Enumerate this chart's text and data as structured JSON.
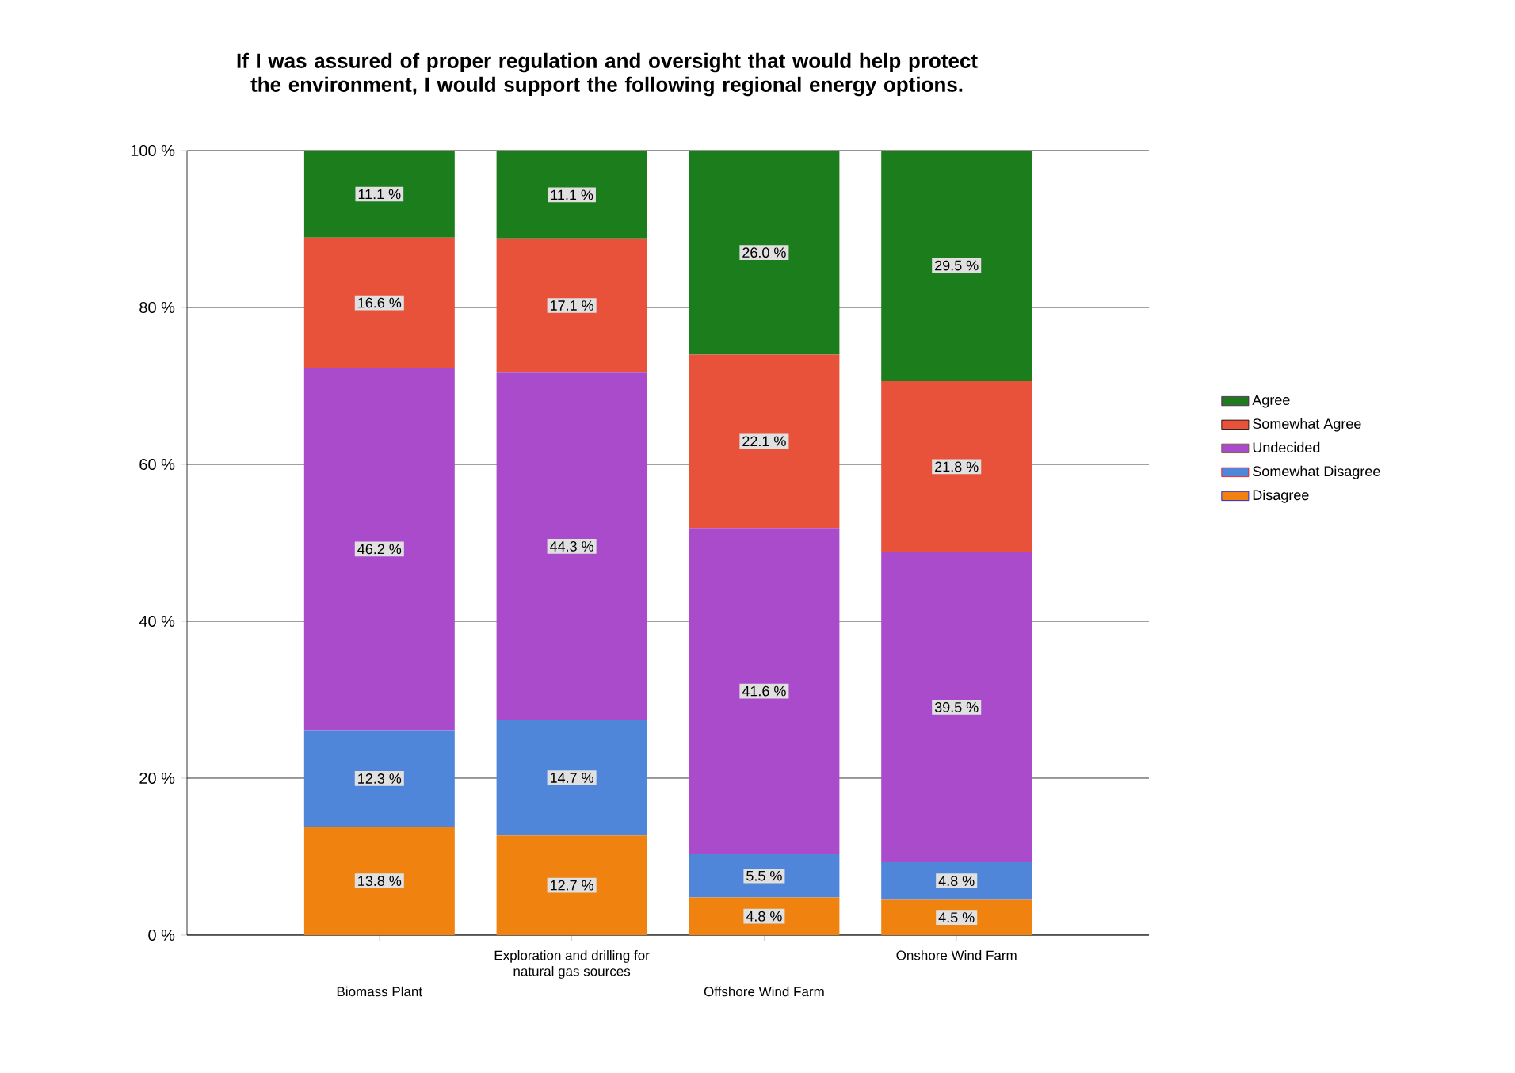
{
  "chart_data": {
    "type": "bar",
    "stacked": true,
    "title": "If I was assured of proper regulation and oversight that would help protect the environment, I would support the following regional energy options.",
    "categories": [
      "Biomass Plant",
      "Exploration and drilling for natural gas sources",
      "Offshore Wind Farm",
      "Onshore Wind Farm"
    ],
    "series": [
      {
        "name": "Disagree",
        "color": "#f0820f",
        "values": [
          13.8,
          12.7,
          4.8,
          4.5
        ],
        "value_labels": [
          "13.8 %",
          "12.7 %",
          "4.8 %",
          "4.5 %"
        ]
      },
      {
        "name": "Somewhat Disagree",
        "color": "#4f86d9",
        "values": [
          12.3,
          14.7,
          5.5,
          4.8
        ],
        "value_labels": [
          "12.3 %",
          "14.7 %",
          "5.5 %",
          "4.8 %"
        ]
      },
      {
        "name": "Undecided",
        "color": "#a94bcb",
        "values": [
          46.2,
          44.3,
          41.6,
          39.5
        ],
        "value_labels": [
          "46.2 %",
          "44.3 %",
          "41.6 %",
          "39.5 %"
        ]
      },
      {
        "name": "Somewhat Agree",
        "color": "#e9523a",
        "values": [
          16.6,
          17.1,
          22.1,
          21.8
        ],
        "value_labels": [
          "16.6 %",
          "17.1 %",
          "22.1 %",
          "21.8 %"
        ]
      },
      {
        "name": "Agree",
        "color": "#1b7d1b",
        "values": [
          11.1,
          11.1,
          26.0,
          29.5
        ],
        "value_labels": [
          "11.1 %",
          "11.1 %",
          "26.0 %",
          "29.5 %"
        ]
      }
    ],
    "ylim": [
      0,
      100
    ],
    "yticks": [
      {
        "value": 0,
        "label": "0 %"
      },
      {
        "value": 20,
        "label": "20 %"
      },
      {
        "value": 40,
        "label": "40 %"
      },
      {
        "value": 60,
        "label": "60 %"
      },
      {
        "value": 80,
        "label": "80 %"
      },
      {
        "value": 100,
        "label": "100 %"
      }
    ],
    "grid": "y",
    "legend": "right"
  }
}
